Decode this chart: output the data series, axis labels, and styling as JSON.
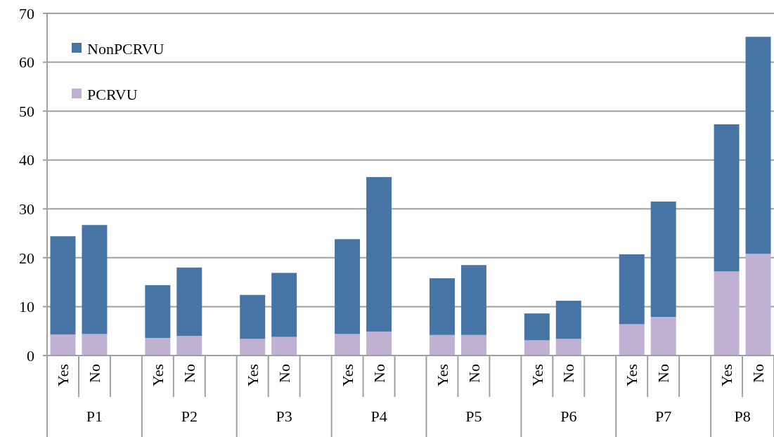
{
  "chart_data": {
    "type": "bar",
    "stacked": true,
    "categories": [
      "Yes",
      "No",
      null,
      "Yes",
      "No",
      null,
      "Yes",
      "No",
      null,
      "Yes",
      "No",
      null,
      "Yes",
      "No",
      null,
      "Yes",
      "No",
      null,
      "Yes",
      "No",
      null,
      "Yes",
      "No"
    ],
    "series": [
      {
        "name": "PCRVU",
        "color": "#c0b1d3",
        "values": [
          4.3,
          4.4,
          null,
          3.6,
          4.0,
          null,
          3.4,
          3.8,
          null,
          4.4,
          4.9,
          null,
          4.2,
          4.2,
          null,
          3.1,
          3.4,
          null,
          6.4,
          7.9,
          null,
          17.2,
          20.8
        ]
      },
      {
        "name": "NonPCRVU",
        "color": "#4674a4",
        "values": [
          20.1,
          22.3,
          null,
          10.8,
          14.0,
          null,
          9.0,
          13.1,
          null,
          19.4,
          31.6,
          null,
          11.6,
          14.3,
          null,
          5.5,
          7.8,
          null,
          14.3,
          23.6,
          null,
          30.1,
          44.4
        ]
      }
    ],
    "annotations": [
      "P1",
      "P2",
      "P3",
      "P4",
      "P5",
      "P6",
      "P7",
      "P8"
    ],
    "ylim": [
      0,
      70
    ],
    "yticks": [
      0,
      10,
      20,
      30,
      40,
      50,
      60,
      70
    ],
    "grid": "y",
    "legend": "top left"
  }
}
